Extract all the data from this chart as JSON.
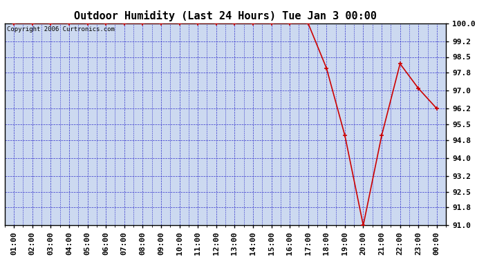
{
  "title": "Outdoor Humidity (Last 24 Hours) Tue Jan 3 00:00",
  "copyright_text": "Copyright 2006 Curtronics.com",
  "x_labels": [
    "01:00",
    "02:00",
    "03:00",
    "04:00",
    "05:00",
    "06:00",
    "07:00",
    "08:00",
    "09:00",
    "10:00",
    "11:00",
    "12:00",
    "13:00",
    "14:00",
    "15:00",
    "16:00",
    "17:00",
    "18:00",
    "19:00",
    "20:00",
    "21:00",
    "22:00",
    "23:00",
    "00:00"
  ],
  "x_values": [
    1,
    2,
    3,
    4,
    5,
    6,
    7,
    8,
    9,
    10,
    11,
    12,
    13,
    14,
    15,
    16,
    17,
    18,
    19,
    20,
    21,
    22,
    23,
    24
  ],
  "y_values": [
    100.0,
    100.0,
    100.0,
    100.0,
    100.0,
    100.0,
    100.0,
    100.0,
    100.0,
    100.0,
    100.0,
    100.0,
    100.0,
    100.0,
    100.0,
    100.0,
    100.0,
    98.0,
    95.0,
    91.0,
    95.0,
    98.2,
    97.1,
    96.2
  ],
  "ylim_min": 91.0,
  "ylim_max": 100.0,
  "ytick_values": [
    91.0,
    91.8,
    92.5,
    93.2,
    94.0,
    94.8,
    95.5,
    96.2,
    97.0,
    97.8,
    98.5,
    99.2,
    100.0
  ],
  "ytick_labels": [
    "91.0",
    "91.8",
    "92.5",
    "93.2",
    "94.0",
    "94.8",
    "95.5",
    "96.2",
    "97.0",
    "97.8",
    "98.5",
    "99.2",
    "100.0"
  ],
  "line_color": "#cc0000",
  "marker_color": "#cc0000",
  "bg_color": "#ccd9f0",
  "fig_bg": "#ffffff",
  "grid_color": "#3333cc",
  "title_fontsize": 11,
  "tick_fontsize": 8,
  "copyright_fontsize": 6.5
}
